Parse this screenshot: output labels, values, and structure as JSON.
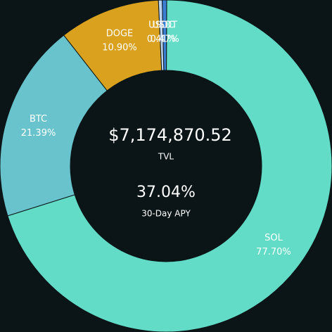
{
  "chart_data": {
    "type": "donut",
    "categories": [
      "SOL",
      "BTC",
      "DOGE",
      "USDC",
      "USDT"
    ],
    "values": [
      77.7,
      21.39,
      10.9,
      0.41,
      0.47
    ],
    "value_labels": [
      "77.70%",
      "21.39%",
      "10.90%",
      "0.41%",
      "0.47%"
    ],
    "colors": [
      "#62dcc6",
      "#69c3cc",
      "#d9a11e",
      "#b9d3ee",
      "#3b7fd4"
    ],
    "center_texts": [
      {
        "value": "$7,174,870.52",
        "caption": "TVL"
      },
      {
        "value": "37.04%",
        "caption": "30-Day APY"
      }
    ]
  }
}
